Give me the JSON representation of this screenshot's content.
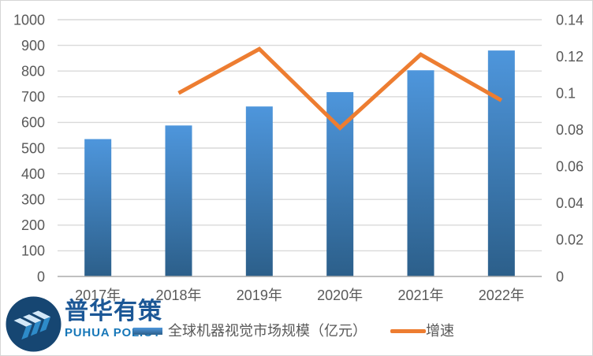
{
  "chart_data": {
    "type": "combo",
    "categories": [
      "2017年",
      "2018年",
      "2019年",
      "2020年",
      "2021年",
      "2022年"
    ],
    "series": [
      {
        "name": "全球机器视觉市场规模（亿元）",
        "type": "bar",
        "axis": "left",
        "values": [
          535,
          588,
          662,
          718,
          803,
          880
        ]
      },
      {
        "name": "增速",
        "type": "line",
        "axis": "right",
        "values": [
          null,
          0.1,
          0.124,
          0.081,
          0.121,
          0.096
        ]
      }
    ],
    "left_axis": {
      "min": 0,
      "max": 1000,
      "step": 100,
      "ticks": [
        "0",
        "100",
        "200",
        "300",
        "400",
        "500",
        "600",
        "700",
        "800",
        "900",
        "1000"
      ]
    },
    "right_axis": {
      "min": 0,
      "max": 0.14,
      "step": 0.02,
      "ticks": [
        "0",
        "0.02",
        "0.04",
        "0.06",
        "0.08",
        "0.1",
        "0.12",
        "0.14"
      ]
    },
    "grid": true,
    "legend_position": "bottom",
    "title": ""
  },
  "legend": {
    "items": [
      {
        "label": "全球机器视觉市场规模（亿元）",
        "swatch": "bar"
      },
      {
        "label": "增速",
        "swatch": "line"
      }
    ]
  },
  "logo": {
    "brand_cn": "普华有策",
    "brand_en": "PUHUA POLICY"
  },
  "colors": {
    "bar_top": "#4E96DC",
    "bar_bottom": "#2C5F8A",
    "line": "#ED7D31",
    "grid": "#D9D9D9",
    "axis_line": "#ABABAB",
    "label": "#595959",
    "logo_circle": "#164672",
    "chevron_light": "#D3E8F8",
    "chevron_dark": "#2E8BC9",
    "brand_cn_color": "#1B5796",
    "brand_en_color": "#1777B8"
  }
}
